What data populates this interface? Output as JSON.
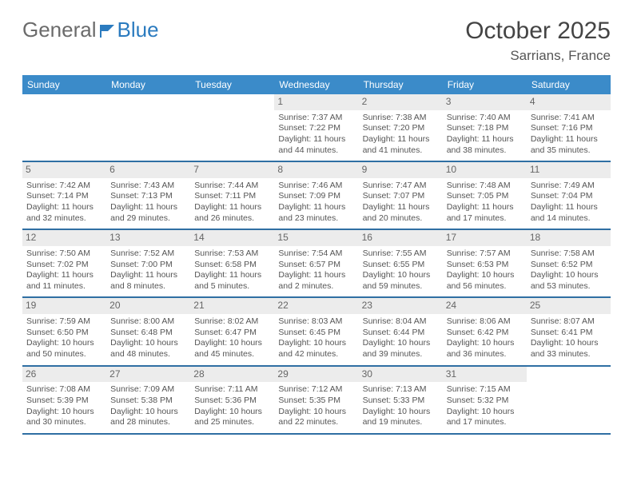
{
  "brand": {
    "part1": "General",
    "part2": "Blue"
  },
  "title": "October 2025",
  "location": "Sarrians, France",
  "colors": {
    "header_bg": "#3b8bc9",
    "week_border": "#2f6fa3",
    "daynum_bg": "#ececec",
    "text": "#555555"
  },
  "dow": [
    "Sunday",
    "Monday",
    "Tuesday",
    "Wednesday",
    "Thursday",
    "Friday",
    "Saturday"
  ],
  "weeks": [
    [
      {
        "n": "",
        "empty": true
      },
      {
        "n": "",
        "empty": true
      },
      {
        "n": "",
        "empty": true
      },
      {
        "n": "1",
        "sunrise": "7:37 AM",
        "sunset": "7:22 PM",
        "dl1": "Daylight: 11 hours",
        "dl2": "and 44 minutes."
      },
      {
        "n": "2",
        "sunrise": "7:38 AM",
        "sunset": "7:20 PM",
        "dl1": "Daylight: 11 hours",
        "dl2": "and 41 minutes."
      },
      {
        "n": "3",
        "sunrise": "7:40 AM",
        "sunset": "7:18 PM",
        "dl1": "Daylight: 11 hours",
        "dl2": "and 38 minutes."
      },
      {
        "n": "4",
        "sunrise": "7:41 AM",
        "sunset": "7:16 PM",
        "dl1": "Daylight: 11 hours",
        "dl2": "and 35 minutes."
      }
    ],
    [
      {
        "n": "5",
        "sunrise": "7:42 AM",
        "sunset": "7:14 PM",
        "dl1": "Daylight: 11 hours",
        "dl2": "and 32 minutes."
      },
      {
        "n": "6",
        "sunrise": "7:43 AM",
        "sunset": "7:13 PM",
        "dl1": "Daylight: 11 hours",
        "dl2": "and 29 minutes."
      },
      {
        "n": "7",
        "sunrise": "7:44 AM",
        "sunset": "7:11 PM",
        "dl1": "Daylight: 11 hours",
        "dl2": "and 26 minutes."
      },
      {
        "n": "8",
        "sunrise": "7:46 AM",
        "sunset": "7:09 PM",
        "dl1": "Daylight: 11 hours",
        "dl2": "and 23 minutes."
      },
      {
        "n": "9",
        "sunrise": "7:47 AM",
        "sunset": "7:07 PM",
        "dl1": "Daylight: 11 hours",
        "dl2": "and 20 minutes."
      },
      {
        "n": "10",
        "sunrise": "7:48 AM",
        "sunset": "7:05 PM",
        "dl1": "Daylight: 11 hours",
        "dl2": "and 17 minutes."
      },
      {
        "n": "11",
        "sunrise": "7:49 AM",
        "sunset": "7:04 PM",
        "dl1": "Daylight: 11 hours",
        "dl2": "and 14 minutes."
      }
    ],
    [
      {
        "n": "12",
        "sunrise": "7:50 AM",
        "sunset": "7:02 PM",
        "dl1": "Daylight: 11 hours",
        "dl2": "and 11 minutes."
      },
      {
        "n": "13",
        "sunrise": "7:52 AM",
        "sunset": "7:00 PM",
        "dl1": "Daylight: 11 hours",
        "dl2": "and 8 minutes."
      },
      {
        "n": "14",
        "sunrise": "7:53 AM",
        "sunset": "6:58 PM",
        "dl1": "Daylight: 11 hours",
        "dl2": "and 5 minutes."
      },
      {
        "n": "15",
        "sunrise": "7:54 AM",
        "sunset": "6:57 PM",
        "dl1": "Daylight: 11 hours",
        "dl2": "and 2 minutes."
      },
      {
        "n": "16",
        "sunrise": "7:55 AM",
        "sunset": "6:55 PM",
        "dl1": "Daylight: 10 hours",
        "dl2": "and 59 minutes."
      },
      {
        "n": "17",
        "sunrise": "7:57 AM",
        "sunset": "6:53 PM",
        "dl1": "Daylight: 10 hours",
        "dl2": "and 56 minutes."
      },
      {
        "n": "18",
        "sunrise": "7:58 AM",
        "sunset": "6:52 PM",
        "dl1": "Daylight: 10 hours",
        "dl2": "and 53 minutes."
      }
    ],
    [
      {
        "n": "19",
        "sunrise": "7:59 AM",
        "sunset": "6:50 PM",
        "dl1": "Daylight: 10 hours",
        "dl2": "and 50 minutes."
      },
      {
        "n": "20",
        "sunrise": "8:00 AM",
        "sunset": "6:48 PM",
        "dl1": "Daylight: 10 hours",
        "dl2": "and 48 minutes."
      },
      {
        "n": "21",
        "sunrise": "8:02 AM",
        "sunset": "6:47 PM",
        "dl1": "Daylight: 10 hours",
        "dl2": "and 45 minutes."
      },
      {
        "n": "22",
        "sunrise": "8:03 AM",
        "sunset": "6:45 PM",
        "dl1": "Daylight: 10 hours",
        "dl2": "and 42 minutes."
      },
      {
        "n": "23",
        "sunrise": "8:04 AM",
        "sunset": "6:44 PM",
        "dl1": "Daylight: 10 hours",
        "dl2": "and 39 minutes."
      },
      {
        "n": "24",
        "sunrise": "8:06 AM",
        "sunset": "6:42 PM",
        "dl1": "Daylight: 10 hours",
        "dl2": "and 36 minutes."
      },
      {
        "n": "25",
        "sunrise": "8:07 AM",
        "sunset": "6:41 PM",
        "dl1": "Daylight: 10 hours",
        "dl2": "and 33 minutes."
      }
    ],
    [
      {
        "n": "26",
        "sunrise": "7:08 AM",
        "sunset": "5:39 PM",
        "dl1": "Daylight: 10 hours",
        "dl2": "and 30 minutes."
      },
      {
        "n": "27",
        "sunrise": "7:09 AM",
        "sunset": "5:38 PM",
        "dl1": "Daylight: 10 hours",
        "dl2": "and 28 minutes."
      },
      {
        "n": "28",
        "sunrise": "7:11 AM",
        "sunset": "5:36 PM",
        "dl1": "Daylight: 10 hours",
        "dl2": "and 25 minutes."
      },
      {
        "n": "29",
        "sunrise": "7:12 AM",
        "sunset": "5:35 PM",
        "dl1": "Daylight: 10 hours",
        "dl2": "and 22 minutes."
      },
      {
        "n": "30",
        "sunrise": "7:13 AM",
        "sunset": "5:33 PM",
        "dl1": "Daylight: 10 hours",
        "dl2": "and 19 minutes."
      },
      {
        "n": "31",
        "sunrise": "7:15 AM",
        "sunset": "5:32 PM",
        "dl1": "Daylight: 10 hours",
        "dl2": "and 17 minutes."
      },
      {
        "n": "",
        "empty": true
      }
    ]
  ],
  "labels": {
    "sunrise_prefix": "Sunrise: ",
    "sunset_prefix": "Sunset: "
  }
}
